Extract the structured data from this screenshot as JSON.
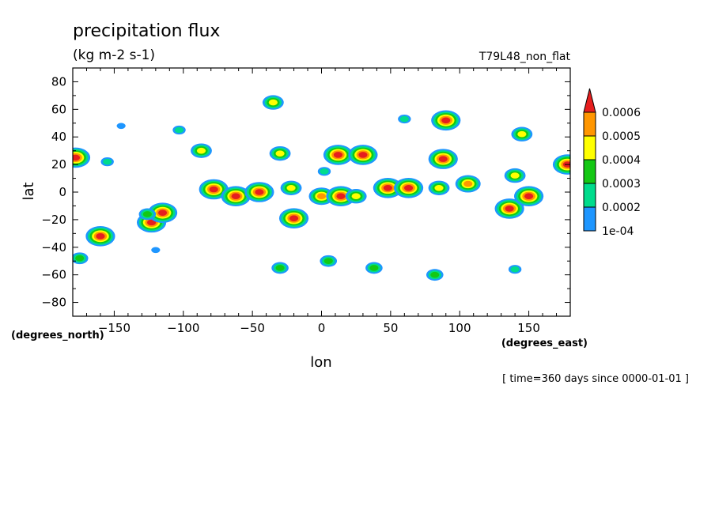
{
  "chart_data": {
    "type": "heatmap",
    "title": "precipitation flux",
    "units": "(kg m-2 s-1)",
    "run_label": "T79L48_non_flat",
    "xlabel": "lon",
    "ylabel": "lat",
    "x_units_label": "(degrees_east)",
    "y_units_label": "(degrees_north)",
    "time_label": "[ time=360 days since 0000-01-01 ]",
    "xlim": [
      -180,
      180
    ],
    "ylim": [
      -90,
      90
    ],
    "x_ticks": [
      -150,
      -100,
      -50,
      0,
      50,
      100,
      150
    ],
    "y_ticks": [
      80,
      60,
      40,
      20,
      0,
      -20,
      -40,
      -60,
      -80
    ],
    "colorbar": {
      "levels": [
        "1e-04",
        "0.0002",
        "0.0003",
        "0.0004",
        "0.0005",
        "0.0006"
      ],
      "colors": [
        "#1e96ff",
        "#00dc8c",
        "#14c814",
        "#ffff00",
        "#ff9600",
        "#e61e1e"
      ]
    },
    "features": [
      {
        "lon": -178,
        "lat": 25,
        "peak": 6
      },
      {
        "lon": -155,
        "lat": 22,
        "peak": 2
      },
      {
        "lon": -145,
        "lat": 48,
        "peak": 1
      },
      {
        "lon": -103,
        "lat": 45,
        "peak": 2
      },
      {
        "lon": -87,
        "lat": 30,
        "peak": 4
      },
      {
        "lon": -78,
        "lat": 2,
        "peak": 6
      },
      {
        "lon": -62,
        "lat": -3,
        "peak": 6
      },
      {
        "lon": -45,
        "lat": 0,
        "peak": 6
      },
      {
        "lon": -30,
        "lat": 28,
        "peak": 4
      },
      {
        "lon": -22,
        "lat": 3,
        "peak": 4
      },
      {
        "lon": -20,
        "lat": -19,
        "peak": 6
      },
      {
        "lon": 12,
        "lat": 27,
        "peak": 6
      },
      {
        "lon": 30,
        "lat": 27,
        "peak": 6
      },
      {
        "lon": 2,
        "lat": 15,
        "peak": 2
      },
      {
        "lon": 0,
        "lat": -3,
        "peak": 5
      },
      {
        "lon": 14,
        "lat": -3,
        "peak": 6
      },
      {
        "lon": 25,
        "lat": -3,
        "peak": 4
      },
      {
        "lon": 48,
        "lat": 3,
        "peak": 6
      },
      {
        "lon": 63,
        "lat": 3,
        "peak": 6
      },
      {
        "lon": 85,
        "lat": 3,
        "peak": 4
      },
      {
        "lon": 88,
        "lat": 24,
        "peak": 6
      },
      {
        "lon": 106,
        "lat": 6,
        "peak": 5
      },
      {
        "lon": 136,
        "lat": -12,
        "peak": 6
      },
      {
        "lon": 150,
        "lat": -3,
        "peak": 6
      },
      {
        "lon": 140,
        "lat": 12,
        "peak": 4
      },
      {
        "lon": 178,
        "lat": 20,
        "peak": 6
      },
      {
        "lon": -123,
        "lat": -22,
        "peak": 6
      },
      {
        "lon": -115,
        "lat": -15,
        "peak": 6
      },
      {
        "lon": -160,
        "lat": -32,
        "peak": 6
      },
      {
        "lon": -126,
        "lat": -16,
        "peak": 3
      },
      {
        "lon": 5,
        "lat": -50,
        "peak": 3
      },
      {
        "lon": 38,
        "lat": -55,
        "peak": 3
      },
      {
        "lon": 82,
        "lat": -60,
        "peak": 3
      },
      {
        "lon": -30,
        "lat": -55,
        "peak": 3
      },
      {
        "lon": -175,
        "lat": -48,
        "peak": 3
      },
      {
        "lon": 90,
        "lat": 52,
        "peak": 6
      },
      {
        "lon": 145,
        "lat": 42,
        "peak": 4
      },
      {
        "lon": -35,
        "lat": 65,
        "peak": 4
      },
      {
        "lon": -120,
        "lat": -42,
        "peak": 1
      },
      {
        "lon": 140,
        "lat": -56,
        "peak": 2
      },
      {
        "lon": 60,
        "lat": 53,
        "peak": 2
      }
    ]
  }
}
